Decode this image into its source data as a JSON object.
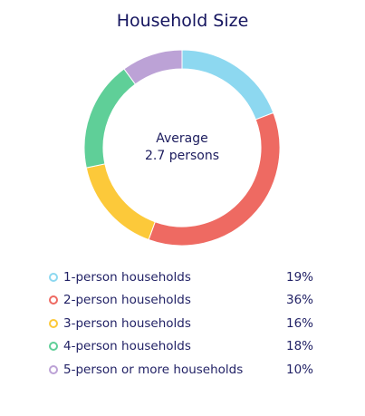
{
  "title": "Household Size",
  "center": {
    "line1": "Average",
    "line2": "2.7 persons"
  },
  "chart_data": {
    "type": "pie",
    "title": "Household Size",
    "series": [
      {
        "name": "1-person households",
        "value": 19,
        "label": "19%",
        "color": "#8dd8f0"
      },
      {
        "name": "2-person households",
        "value": 36,
        "label": "36%",
        "color": "#ee6a62"
      },
      {
        "name": "3-person households",
        "value": 16,
        "label": "16%",
        "color": "#fcc93a"
      },
      {
        "name": "4-person households",
        "value": 18,
        "label": "18%",
        "color": "#5fcf98"
      },
      {
        "name": "5-person or more households",
        "value": 10,
        "label": "10%",
        "color": "#bca2d6"
      }
    ],
    "legend_position": "bottom"
  }
}
